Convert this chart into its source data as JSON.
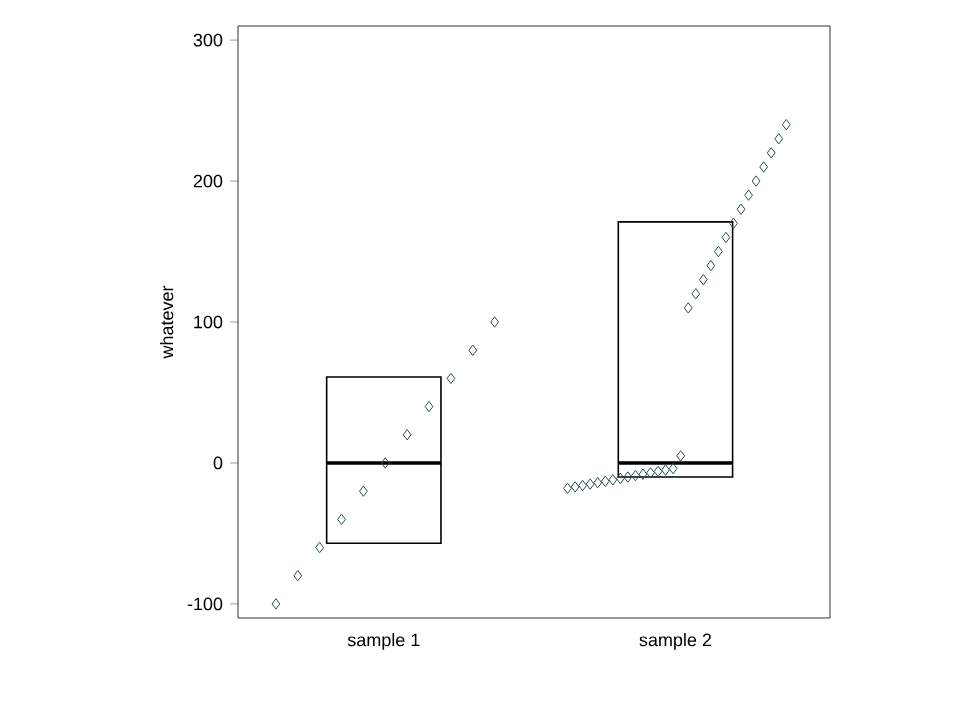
{
  "chart_data": {
    "type": "box",
    "ylabel": "whatever",
    "categories": [
      "sample 1",
      "sample 2"
    ],
    "ylim": [
      -110,
      310
    ],
    "yticks": [
      -100,
      0,
      100,
      200,
      300
    ],
    "grid": false,
    "marker": "diamond",
    "boxes": [
      {
        "low": -57,
        "q1": -57,
        "median": 0,
        "q3": 61,
        "high": 61
      },
      {
        "low": -10,
        "q1": -10,
        "median": 0,
        "q3": 171,
        "high": 171
      }
    ],
    "series": [
      {
        "type": "scatter",
        "color": "#2f4f4f",
        "x": [
          "sample 1",
          "sample 1",
          "sample 1",
          "sample 1",
          "sample 1",
          "sample 1",
          "sample 1",
          "sample 1",
          "sample 1",
          "sample 1",
          "sample 1"
        ],
        "values": [
          -100,
          -80,
          -60,
          -40,
          -20,
          0,
          20,
          40,
          60,
          80,
          100
        ]
      },
      {
        "type": "scatter",
        "color": "#2f4f4f",
        "x": [
          "sample 2",
          "sample 2",
          "sample 2",
          "sample 2",
          "sample 2",
          "sample 2",
          "sample 2",
          "sample 2",
          "sample 2",
          "sample 2",
          "sample 2",
          "sample 2",
          "sample 2",
          "sample 2",
          "sample 2",
          "sample 2",
          "sample 2",
          "sample 2",
          "sample 2",
          "sample 2",
          "sample 2",
          "sample 2",
          "sample 2",
          "sample 2",
          "sample 2",
          "sample 2",
          "sample 2",
          "sample 2",
          "sample 2",
          "sample 2"
        ],
        "values": [
          -18,
          -17,
          -16,
          -15,
          -14,
          -13,
          -12,
          -11,
          -10,
          -9,
          -8,
          -7,
          -6,
          -5,
          -4,
          5,
          110,
          120,
          130,
          140,
          150,
          160,
          170,
          180,
          190,
          200,
          210,
          220,
          230,
          240
        ]
      }
    ]
  }
}
